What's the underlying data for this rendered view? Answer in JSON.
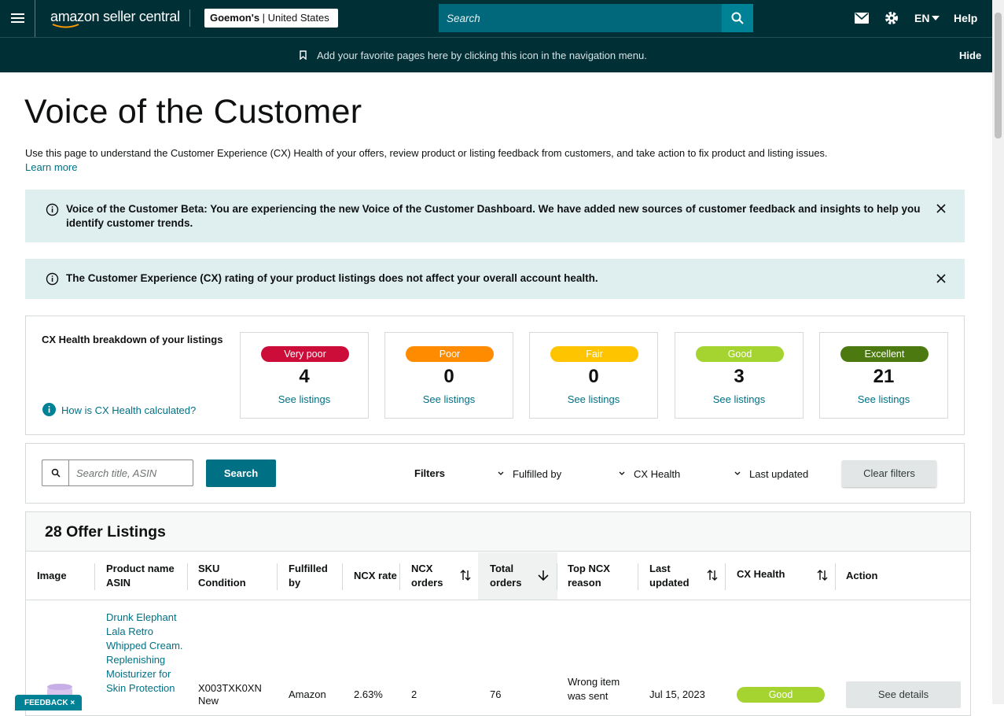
{
  "header": {
    "brand": "amazon seller central",
    "store": "Goemon's",
    "region": "United States",
    "search_placeholder": "Search",
    "language": "EN",
    "help": "Help"
  },
  "bookmark_bar": {
    "message": "Add your favorite pages here by clicking this icon in the navigation menu.",
    "hide": "Hide"
  },
  "page": {
    "title": "Voice of the Customer",
    "description": "Use this page to understand the Customer Experience (CX) Health of your offers, review product or listing feedback from customers, and take action to fix product and listing issues.",
    "learn_more": "Learn more"
  },
  "alerts": [
    "Voice of the Customer Beta: You are experiencing the new Voice of the Customer Dashboard. We have added new sources of customer feedback and insights to help you identify customer trends.",
    "The Customer Experience (CX) rating of your product listings does not affect your overall account health."
  ],
  "cx_breakdown": {
    "title": "CX Health breakdown of your listings",
    "help_link": "How is CX Health calculated?",
    "cards": [
      {
        "label": "Very poor",
        "count": 4,
        "link": "See listings"
      },
      {
        "label": "Poor",
        "count": 0,
        "link": "See listings"
      },
      {
        "label": "Fair",
        "count": 0,
        "link": "See listings"
      },
      {
        "label": "Good",
        "count": 3,
        "link": "See listings"
      },
      {
        "label": "Excellent",
        "count": 21,
        "link": "See listings"
      }
    ]
  },
  "filters": {
    "search_placeholder": "Search title, ASIN",
    "search_button": "Search",
    "label": "Filters",
    "dropdowns": [
      "Fulfilled by",
      "CX Health",
      "Last updated"
    ],
    "clear": "Clear filters"
  },
  "table": {
    "title": "28 Offer Listings",
    "columns": [
      [
        "Image"
      ],
      [
        "Product name",
        "ASIN"
      ],
      [
        "SKU",
        "Condition"
      ],
      [
        "Fulfilled",
        "by"
      ],
      [
        "NCX rate"
      ],
      [
        "NCX",
        "orders"
      ],
      [
        "Total",
        "orders"
      ],
      [
        "Top NCX",
        "reason"
      ],
      [
        "Last",
        "updated"
      ],
      [
        "CX Health"
      ],
      [
        "Action"
      ]
    ],
    "rows": [
      {
        "product_name": "Drunk Elephant Lala Retro Whipped Cream. Replenishing Moisturizer for Skin Protection",
        "sku": "X003TXK0XN",
        "condition": "New",
        "fulfilled_by": "Amazon",
        "ncx_rate": "2.63%",
        "ncx_orders": 2,
        "total_orders": 76,
        "top_ncx_reason": "Wrong item was sent",
        "last_updated": "Jul 15, 2023",
        "cx_health": "Good",
        "action": "See details"
      }
    ]
  },
  "feedback": "FEEDBACK"
}
